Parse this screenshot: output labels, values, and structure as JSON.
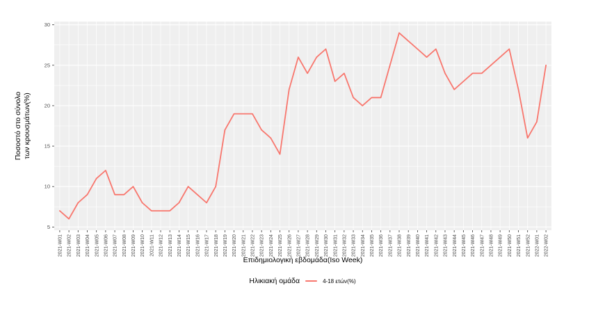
{
  "figure": {
    "y_axis_title_line1": "Ποσοστό στο σύνολο",
    "y_axis_title_line2": "των κρουσμάτων(%)",
    "x_axis_title": "Επιδημιολογική εβδομάδα(Iso Week)",
    "legend_title": "Ηλικιακή ομάδα",
    "legend_series_label": "4-18 ετών(%)"
  },
  "chart_data": {
    "type": "line",
    "title": "",
    "xlabel": "Επιδημιολογική εβδομάδα(Iso Week)",
    "ylabel": "Ποσοστό στο σύνολο των κρουσμάτων(%)",
    "legend_title": "Ηλικιακή ομάδα",
    "legend_position": "bottom",
    "grid": "major and minor horizontal + major vertical, white on grey panel",
    "ylim": [
      5,
      30
    ],
    "yticks": [
      5,
      10,
      15,
      20,
      25,
      30
    ],
    "yticks_minor": [
      7.5,
      12.5,
      17.5,
      22.5,
      27.5
    ],
    "panel_color": "#EFEFEF",
    "grid_color": "#FFFFFF",
    "tick_color": "#333333",
    "tick_label_color": "#4D4D4D",
    "x": [
      "2021-W01",
      "2021-W02",
      "2021-W03",
      "2021-W04",
      "2021-W05",
      "2021-W06",
      "2021-W07",
      "2021-W08",
      "2021-W09",
      "2021-W10",
      "2021-W11",
      "2021-W12",
      "2021-W13",
      "2021-W14",
      "2021-W15",
      "2021-W16",
      "2021-W17",
      "2021-W18",
      "2021-W19",
      "2021-W20",
      "2021-W21",
      "2021-W22",
      "2021-W23",
      "2021-W24",
      "2021-W25",
      "2021-W26",
      "2021-W27",
      "2021-W28",
      "2021-W29",
      "2021-W30",
      "2021-W31",
      "2021-W32",
      "2021-W33",
      "2021-W34",
      "2021-W35",
      "2021-W36",
      "2021-W37",
      "2021-W38",
      "2021-W39",
      "2021-W40",
      "2021-W41",
      "2021-W42",
      "2021-W43",
      "2021-W44",
      "2021-W45",
      "2021-W46",
      "2021-W47",
      "2021-W48",
      "2021-W49",
      "2021-W50",
      "2021-W51",
      "2021-W52",
      "2022-W01",
      "2022-W02"
    ],
    "series": [
      {
        "name": "4-18 ετών(%)",
        "color": "#F8766D",
        "values": [
          7,
          6,
          8,
          9,
          11,
          12,
          9,
          9,
          10,
          8,
          7,
          7,
          7,
          8,
          10,
          9,
          8,
          10,
          17,
          19,
          19,
          19,
          17,
          16,
          14,
          22,
          26,
          24,
          26,
          27,
          23,
          24,
          21,
          20,
          21,
          21,
          25,
          29,
          28,
          27,
          26,
          27,
          24,
          22,
          23,
          24,
          24,
          25,
          26,
          27,
          22,
          16,
          18,
          25
        ]
      }
    ]
  }
}
